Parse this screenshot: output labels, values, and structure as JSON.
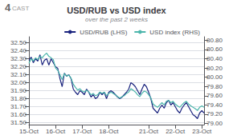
{
  "chart_data": {
    "type": "line",
    "title": "USD/RUB vs USD index",
    "subtitle": "over the past 2 weeks",
    "annotations": [
      "4",
      "CAST"
    ],
    "categories": [
      "15-Oct",
      null,
      null,
      null,
      null,
      null,
      null,
      null,
      null,
      null,
      null,
      null,
      "16-Oct",
      null,
      null,
      null,
      null,
      null,
      null,
      null,
      null,
      null,
      null,
      null,
      "17-Oct",
      null,
      null,
      null,
      null,
      null,
      null,
      null,
      null,
      null,
      null,
      null,
      "18-Oct",
      null,
      null,
      null,
      null,
      null,
      null,
      null,
      null,
      null,
      null,
      null,
      null,
      null,
      null,
      null,
      null,
      null,
      "21-Oct",
      null,
      null,
      null,
      null,
      null,
      null,
      null,
      null,
      null,
      null,
      null,
      "22-Oct",
      null,
      null,
      null,
      null,
      null,
      null,
      null,
      null,
      null,
      null,
      null,
      "23-Oct",
      null
    ],
    "series": [
      {
        "name": "USD/RUB (LHS)",
        "color": "#1a237e",
        "values": [
          32.28,
          32.32,
          32.25,
          32.3,
          32.27,
          32.35,
          32.22,
          32.28,
          32.3,
          32.22,
          32.3,
          32.25,
          32.2,
          32.18,
          32.05,
          31.95,
          32.12,
          32.08,
          32.1,
          32.05,
          31.92,
          31.88,
          31.85,
          31.9,
          31.88,
          31.85,
          31.92,
          31.88,
          31.82,
          31.85,
          31.8,
          31.82,
          31.88,
          31.85,
          31.88,
          31.8,
          31.88,
          31.9,
          31.88,
          31.85,
          31.82,
          31.8,
          31.82,
          31.85,
          31.88,
          31.92,
          32.0,
          31.98,
          31.95,
          31.9,
          31.85,
          31.92,
          31.98,
          31.95,
          31.88,
          31.8,
          31.68,
          31.65,
          31.62,
          31.68,
          31.72,
          31.68,
          31.75,
          31.78,
          31.72,
          31.75,
          31.7,
          31.65,
          31.62,
          31.68,
          31.72,
          31.75,
          31.7,
          31.65,
          31.6,
          31.58,
          31.55,
          31.62,
          31.65,
          31.62
        ]
      },
      {
        "name": "USD index (RHS)",
        "color": "#4db6ac",
        "axis": "y2",
        "values": [
          80.3,
          80.4,
          80.35,
          80.42,
          80.38,
          80.45,
          80.42,
          80.48,
          80.52,
          80.45,
          80.42,
          80.38,
          80.2,
          80.15,
          80.05,
          79.95,
          80.08,
          80.02,
          80.05,
          79.98,
          79.85,
          79.78,
          79.72,
          79.75,
          79.7,
          79.68,
          79.72,
          79.68,
          79.62,
          79.65,
          79.6,
          79.62,
          79.68,
          79.65,
          79.68,
          79.6,
          79.65,
          79.68,
          79.65,
          79.62,
          79.58,
          79.55,
          79.58,
          79.6,
          79.65,
          79.68,
          79.75,
          79.72,
          79.68,
          79.62,
          79.58,
          79.65,
          79.7,
          79.68,
          79.62,
          79.55,
          79.42,
          79.38,
          79.35,
          79.4,
          79.45,
          79.4,
          79.48,
          79.5,
          79.45,
          79.48,
          79.42,
          79.38,
          79.35,
          79.4,
          79.45,
          79.48,
          79.42,
          79.38,
          79.35,
          79.32,
          79.28,
          79.35,
          79.38,
          79.35
        ]
      }
    ],
    "ylim": [
      31.475,
      32.575
    ],
    "yticks": [
      {
        "value": 31.5,
        "label": "31.50"
      },
      {
        "value": 31.6,
        "label": "31.60"
      },
      {
        "value": 31.7,
        "label": "31.70"
      },
      {
        "value": 31.8,
        "label": "31.80"
      },
      {
        "value": 31.9,
        "label": "31.90"
      },
      {
        "value": 32.0,
        "label": "32.00"
      },
      {
        "value": 32.1,
        "label": "32.10"
      },
      {
        "value": 32.2,
        "label": "32.20"
      },
      {
        "value": 32.3,
        "label": "32.30"
      },
      {
        "value": 32.4,
        "label": "32.40"
      },
      {
        "value": 32.5,
        "label": "32.50"
      }
    ],
    "y2lim": [
      78.975,
      80.875
    ],
    "y2ticks": [
      {
        "value": 79.0,
        "label": "79.00"
      },
      {
        "value": 79.2,
        "label": "79.20"
      },
      {
        "value": 79.4,
        "label": "79.40"
      },
      {
        "value": 79.6,
        "label": "79.60"
      },
      {
        "value": 79.8,
        "label": "79.80"
      },
      {
        "value": 80.0,
        "label": "80.00"
      },
      {
        "value": 80.2,
        "label": "80.20"
      },
      {
        "value": 80.4,
        "label": "80.40"
      },
      {
        "value": 80.6,
        "label": "80.60"
      },
      {
        "value": 80.8,
        "label": "80.80"
      }
    ],
    "grid": true,
    "legend": "upper right"
  }
}
